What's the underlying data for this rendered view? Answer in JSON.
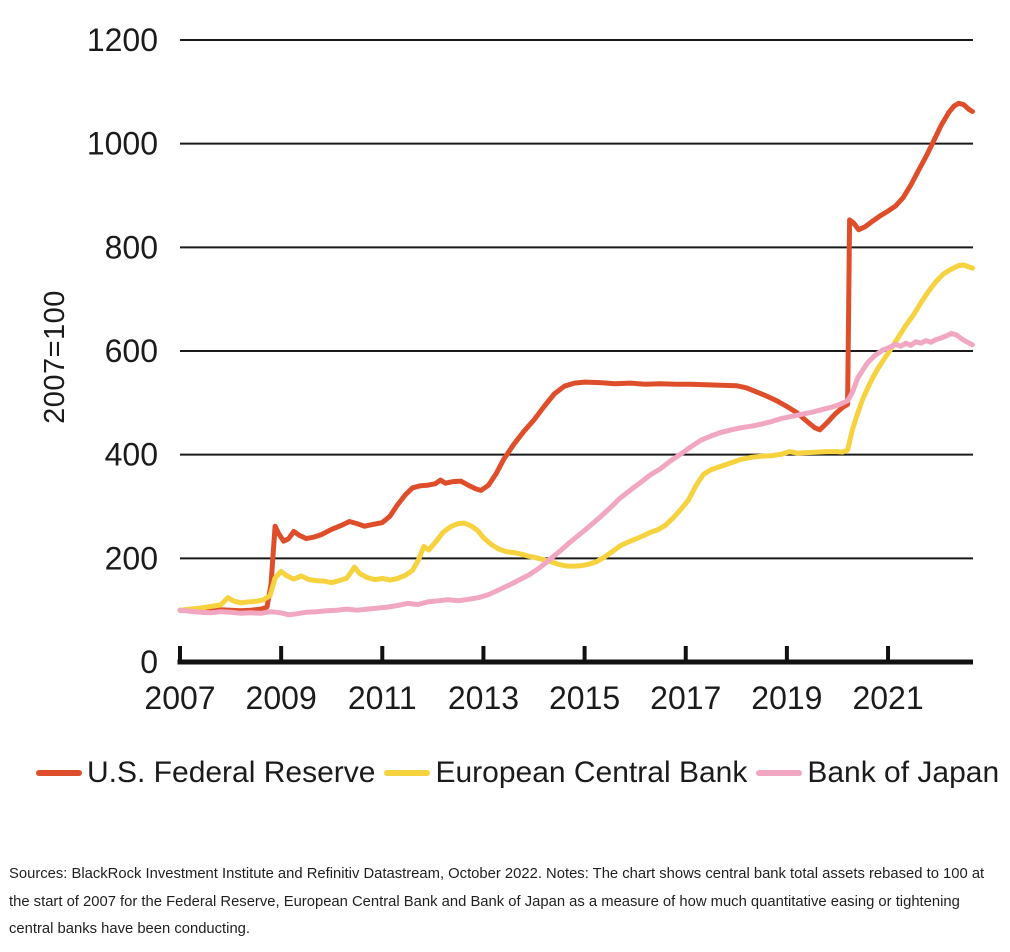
{
  "footnote": "Sources: BlackRock Investment Institute and Refinitiv Datastream, October 2022. Notes: The chart shows central bank total assets rebased to 100 at the start of 2007 for the Federal Reserve, European Central Bank and Bank of Japan as a measure of how much quantitative easing or tightening central banks have been conducting.",
  "colors": {
    "axis": "#111111",
    "grid": "#1a1a1a",
    "text": "#1b1b1b"
  },
  "chart_data": {
    "type": "line",
    "title": "",
    "xlabel": "",
    "ylabel": "2007=100",
    "ylim": [
      0,
      1200
    ],
    "xlim": [
      2007,
      2022.68
    ],
    "yticks": [
      0,
      200,
      400,
      600,
      800,
      1000,
      1200
    ],
    "xticks": [
      2007,
      2009,
      2011,
      2013,
      2015,
      2017,
      2019,
      2021
    ],
    "grid": "horizontal",
    "legend_position": "bottom",
    "series": [
      {
        "name": "U.S. Federal Reserve",
        "color": "#df4e2b",
        "points": [
          [
            2007.0,
            100
          ],
          [
            2007.25,
            99
          ],
          [
            2007.5,
            98
          ],
          [
            2007.75,
            101
          ],
          [
            2008.0,
            100
          ],
          [
            2008.2,
            99
          ],
          [
            2008.4,
            100
          ],
          [
            2008.6,
            102
          ],
          [
            2008.72,
            106
          ],
          [
            2008.8,
            150
          ],
          [
            2008.88,
            262
          ],
          [
            2008.95,
            248
          ],
          [
            2009.05,
            233
          ],
          [
            2009.15,
            238
          ],
          [
            2009.25,
            252
          ],
          [
            2009.35,
            245
          ],
          [
            2009.5,
            238
          ],
          [
            2009.65,
            241
          ],
          [
            2009.8,
            246
          ],
          [
            2010.0,
            256
          ],
          [
            2010.2,
            264
          ],
          [
            2010.35,
            271
          ],
          [
            2010.5,
            267
          ],
          [
            2010.65,
            262
          ],
          [
            2010.8,
            265
          ],
          [
            2011.0,
            269
          ],
          [
            2011.15,
            281
          ],
          [
            2011.3,
            303
          ],
          [
            2011.45,
            322
          ],
          [
            2011.6,
            336
          ],
          [
            2011.75,
            340
          ],
          [
            2011.9,
            341
          ],
          [
            2012.05,
            344
          ],
          [
            2012.15,
            351
          ],
          [
            2012.25,
            345
          ],
          [
            2012.4,
            348
          ],
          [
            2012.55,
            349
          ],
          [
            2012.7,
            341
          ],
          [
            2012.85,
            334
          ],
          [
            2012.95,
            331
          ],
          [
            2013.1,
            341
          ],
          [
            2013.25,
            363
          ],
          [
            2013.4,
            391
          ],
          [
            2013.6,
            420
          ],
          [
            2013.8,
            445
          ],
          [
            2014.0,
            467
          ],
          [
            2014.2,
            493
          ],
          [
            2014.4,
            517
          ],
          [
            2014.6,
            532
          ],
          [
            2014.8,
            538
          ],
          [
            2015.0,
            540
          ],
          [
            2015.3,
            539
          ],
          [
            2015.6,
            537
          ],
          [
            2015.9,
            538
          ],
          [
            2016.2,
            536
          ],
          [
            2016.5,
            537
          ],
          [
            2016.8,
            536
          ],
          [
            2017.1,
            536
          ],
          [
            2017.4,
            535
          ],
          [
            2017.7,
            534
          ],
          [
            2018.0,
            533
          ],
          [
            2018.2,
            529
          ],
          [
            2018.4,
            521
          ],
          [
            2018.6,
            513
          ],
          [
            2018.8,
            504
          ],
          [
            2019.0,
            493
          ],
          [
            2019.2,
            481
          ],
          [
            2019.4,
            464
          ],
          [
            2019.55,
            452
          ],
          [
            2019.65,
            448
          ],
          [
            2019.8,
            462
          ],
          [
            2019.95,
            478
          ],
          [
            2020.1,
            491
          ],
          [
            2020.2,
            497
          ],
          [
            2020.24,
            853
          ],
          [
            2020.32,
            847
          ],
          [
            2020.42,
            834
          ],
          [
            2020.55,
            840
          ],
          [
            2020.7,
            851
          ],
          [
            2020.85,
            861
          ],
          [
            2021.0,
            870
          ],
          [
            2021.15,
            880
          ],
          [
            2021.3,
            896
          ],
          [
            2021.45,
            920
          ],
          [
            2021.6,
            948
          ],
          [
            2021.75,
            975
          ],
          [
            2021.9,
            1005
          ],
          [
            2022.05,
            1035
          ],
          [
            2022.2,
            1060
          ],
          [
            2022.3,
            1072
          ],
          [
            2022.4,
            1078
          ],
          [
            2022.5,
            1075
          ],
          [
            2022.6,
            1066
          ],
          [
            2022.67,
            1062
          ]
        ]
      },
      {
        "name": "European Central Bank",
        "color": "#f6d23f",
        "points": [
          [
            2007.0,
            100
          ],
          [
            2007.2,
            102
          ],
          [
            2007.4,
            104
          ],
          [
            2007.6,
            107
          ],
          [
            2007.8,
            110
          ],
          [
            2007.95,
            124
          ],
          [
            2008.05,
            118
          ],
          [
            2008.2,
            114
          ],
          [
            2008.35,
            116
          ],
          [
            2008.5,
            117
          ],
          [
            2008.65,
            120
          ],
          [
            2008.78,
            128
          ],
          [
            2008.88,
            162
          ],
          [
            2009.0,
            175
          ],
          [
            2009.1,
            167
          ],
          [
            2009.25,
            160
          ],
          [
            2009.4,
            166
          ],
          [
            2009.55,
            159
          ],
          [
            2009.7,
            157
          ],
          [
            2009.85,
            156
          ],
          [
            2010.0,
            153
          ],
          [
            2010.15,
            157
          ],
          [
            2010.3,
            162
          ],
          [
            2010.45,
            183
          ],
          [
            2010.55,
            171
          ],
          [
            2010.7,
            163
          ],
          [
            2010.85,
            159
          ],
          [
            2011.0,
            161
          ],
          [
            2011.15,
            158
          ],
          [
            2011.3,
            161
          ],
          [
            2011.45,
            167
          ],
          [
            2011.6,
            177
          ],
          [
            2011.72,
            198
          ],
          [
            2011.82,
            223
          ],
          [
            2011.92,
            216
          ],
          [
            2012.05,
            231
          ],
          [
            2012.2,
            250
          ],
          [
            2012.35,
            261
          ],
          [
            2012.5,
            267
          ],
          [
            2012.62,
            268
          ],
          [
            2012.75,
            263
          ],
          [
            2012.88,
            254
          ],
          [
            2013.0,
            240
          ],
          [
            2013.15,
            227
          ],
          [
            2013.3,
            218
          ],
          [
            2013.45,
            213
          ],
          [
            2013.6,
            211
          ],
          [
            2013.75,
            208
          ],
          [
            2013.9,
            204
          ],
          [
            2014.05,
            201
          ],
          [
            2014.2,
            197
          ],
          [
            2014.35,
            193
          ],
          [
            2014.5,
            188
          ],
          [
            2014.65,
            185
          ],
          [
            2014.8,
            185
          ],
          [
            2014.95,
            186
          ],
          [
            2015.1,
            189
          ],
          [
            2015.25,
            194
          ],
          [
            2015.4,
            203
          ],
          [
            2015.55,
            213
          ],
          [
            2015.7,
            224
          ],
          [
            2015.85,
            231
          ],
          [
            2016.0,
            237
          ],
          [
            2016.15,
            243
          ],
          [
            2016.3,
            250
          ],
          [
            2016.45,
            255
          ],
          [
            2016.6,
            264
          ],
          [
            2016.75,
            278
          ],
          [
            2016.9,
            294
          ],
          [
            2017.05,
            312
          ],
          [
            2017.2,
            340
          ],
          [
            2017.35,
            362
          ],
          [
            2017.5,
            371
          ],
          [
            2017.65,
            376
          ],
          [
            2017.8,
            381
          ],
          [
            2017.95,
            386
          ],
          [
            2018.1,
            391
          ],
          [
            2018.3,
            395
          ],
          [
            2018.5,
            397
          ],
          [
            2018.7,
            398
          ],
          [
            2018.9,
            401
          ],
          [
            2019.05,
            406
          ],
          [
            2019.2,
            403
          ],
          [
            2019.4,
            404
          ],
          [
            2019.6,
            405
          ],
          [
            2019.8,
            406
          ],
          [
            2020.0,
            406
          ],
          [
            2020.1,
            405
          ],
          [
            2020.2,
            409
          ],
          [
            2020.3,
            450
          ],
          [
            2020.4,
            480
          ],
          [
            2020.5,
            507
          ],
          [
            2020.6,
            529
          ],
          [
            2020.7,
            549
          ],
          [
            2020.8,
            566
          ],
          [
            2020.9,
            581
          ],
          [
            2021.05,
            603
          ],
          [
            2021.2,
            626
          ],
          [
            2021.35,
            649
          ],
          [
            2021.5,
            669
          ],
          [
            2021.65,
            693
          ],
          [
            2021.8,
            715
          ],
          [
            2021.95,
            734
          ],
          [
            2022.1,
            749
          ],
          [
            2022.25,
            758
          ],
          [
            2022.4,
            765
          ],
          [
            2022.5,
            766
          ],
          [
            2022.6,
            762
          ],
          [
            2022.67,
            760
          ]
        ]
      },
      {
        "name": "Bank of Japan",
        "color": "#f1a6c2",
        "points": [
          [
            2007.0,
            100
          ],
          [
            2007.2,
            98
          ],
          [
            2007.4,
            96
          ],
          [
            2007.6,
            95
          ],
          [
            2007.8,
            97
          ],
          [
            2008.0,
            96
          ],
          [
            2008.2,
            94
          ],
          [
            2008.4,
            95
          ],
          [
            2008.6,
            94
          ],
          [
            2008.8,
            97
          ],
          [
            2009.0,
            95
          ],
          [
            2009.15,
            91
          ],
          [
            2009.3,
            93
          ],
          [
            2009.5,
            96
          ],
          [
            2009.7,
            97
          ],
          [
            2009.9,
            99
          ],
          [
            2010.1,
            100
          ],
          [
            2010.3,
            102
          ],
          [
            2010.5,
            100
          ],
          [
            2010.7,
            102
          ],
          [
            2010.9,
            104
          ],
          [
            2011.1,
            106
          ],
          [
            2011.3,
            109
          ],
          [
            2011.5,
            113
          ],
          [
            2011.7,
            111
          ],
          [
            2011.9,
            116
          ],
          [
            2012.1,
            118
          ],
          [
            2012.3,
            120
          ],
          [
            2012.5,
            118
          ],
          [
            2012.7,
            121
          ],
          [
            2012.9,
            124
          ],
          [
            2013.1,
            130
          ],
          [
            2013.3,
            139
          ],
          [
            2013.5,
            148
          ],
          [
            2013.7,
            158
          ],
          [
            2013.9,
            168
          ],
          [
            2014.1,
            181
          ],
          [
            2014.3,
            197
          ],
          [
            2014.5,
            213
          ],
          [
            2014.7,
            230
          ],
          [
            2014.9,
            246
          ],
          [
            2015.1,
            262
          ],
          [
            2015.3,
            279
          ],
          [
            2015.5,
            297
          ],
          [
            2015.7,
            316
          ],
          [
            2015.9,
            331
          ],
          [
            2016.1,
            346
          ],
          [
            2016.3,
            361
          ],
          [
            2016.5,
            373
          ],
          [
            2016.7,
            388
          ],
          [
            2016.9,
            401
          ],
          [
            2017.1,
            415
          ],
          [
            2017.3,
            428
          ],
          [
            2017.5,
            436
          ],
          [
            2017.7,
            443
          ],
          [
            2017.9,
            448
          ],
          [
            2018.1,
            452
          ],
          [
            2018.3,
            455
          ],
          [
            2018.5,
            459
          ],
          [
            2018.7,
            464
          ],
          [
            2018.9,
            470
          ],
          [
            2019.1,
            474
          ],
          [
            2019.3,
            478
          ],
          [
            2019.5,
            482
          ],
          [
            2019.7,
            487
          ],
          [
            2019.9,
            492
          ],
          [
            2020.05,
            497
          ],
          [
            2020.2,
            504
          ],
          [
            2020.3,
            521
          ],
          [
            2020.4,
            548
          ],
          [
            2020.5,
            563
          ],
          [
            2020.6,
            578
          ],
          [
            2020.75,
            592
          ],
          [
            2020.9,
            602
          ],
          [
            2021.05,
            608
          ],
          [
            2021.15,
            613
          ],
          [
            2021.25,
            609
          ],
          [
            2021.35,
            615
          ],
          [
            2021.45,
            611
          ],
          [
            2021.55,
            618
          ],
          [
            2021.65,
            615
          ],
          [
            2021.75,
            620
          ],
          [
            2021.85,
            617
          ],
          [
            2021.95,
            622
          ],
          [
            2022.05,
            625
          ],
          [
            2022.15,
            629
          ],
          [
            2022.25,
            634
          ],
          [
            2022.35,
            631
          ],
          [
            2022.45,
            624
          ],
          [
            2022.55,
            618
          ],
          [
            2022.67,
            612
          ]
        ]
      }
    ]
  }
}
